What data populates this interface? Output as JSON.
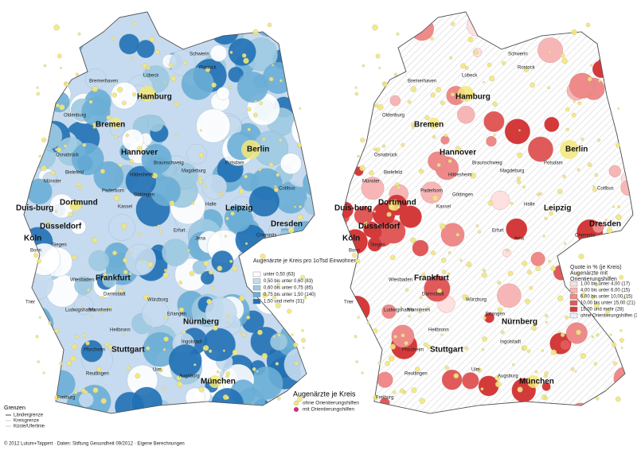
{
  "left_map": {
    "legend": {
      "title": "Augenärzte je Kreis pro 1oTsd Einwohner",
      "items": [
        "unter 0,50 (63)",
        "0,50 bis unter 0,60 (83)",
        "0,60 bis unter 0,75 (85)",
        "0,75 bis unter 1,50 (140)",
        "1,50 und mehr (31)"
      ]
    }
  },
  "right_map": {
    "legend": {
      "title": "Quote in % (je Kreis) Augenärzte mit Orientierungshilfen",
      "items": [
        "1,00 bis unter 4,00 (17)",
        "4,00 bis unter 6,00 (15)",
        "6,00 bis unter 10,00 (15)",
        "10,00 bis unter 15,00 (21)",
        "15,00 und mehr (28)",
        "ohne Orientierungshilfen (306)"
      ]
    }
  },
  "symbol_legend": {
    "title": "Augenärzte je Kreis",
    "items": [
      "ohne Orientierungshilfen",
      "mit Orientierungshilfen"
    ]
  },
  "borders_legend": {
    "title": "Grenzen",
    "items": [
      "Ländergrenze",
      "Kreisgrenze",
      "Küste/Uferlinie"
    ]
  },
  "major_cities": [
    "Hamburg",
    "Bremen",
    "Berlin",
    "Hannover",
    "Dortmund",
    "Duis-burg",
    "Düsseldorf",
    "Köln",
    "Leipzig",
    "Dresden",
    "Frankfurt",
    "Nürnberg",
    "Stuttgart",
    "München"
  ],
  "cities": [
    "Lübeck",
    "Rostock",
    "Bremerhaven",
    "Oldenburg",
    "Osnabrück",
    "Bielefeld",
    "Münster",
    "Braunschweig",
    "Magdeburg",
    "Potsdam",
    "Cottbus",
    "Hildesheim",
    "Paderborn",
    "Göttingen",
    "Kassel",
    "Halle",
    "Erfurt",
    "Jena",
    "Chemnitz",
    "Siegen",
    "Wiesbaden",
    "Darmstadt",
    "Trier",
    "Ludwigshafen",
    "Mannheim",
    "Heilbronn",
    "Würzburg",
    "Erlangen",
    "Ingolstadt",
    "Pforzheim",
    "Reutlingen",
    "Ulm",
    "Augsburg",
    "Freiburg",
    "Schwerin",
    "Bonn"
  ],
  "footer": "© 2012 Lutum+Tappert · Daten: Stiftung Gesundheit 09/2012 · Eigene Berechnungen"
}
